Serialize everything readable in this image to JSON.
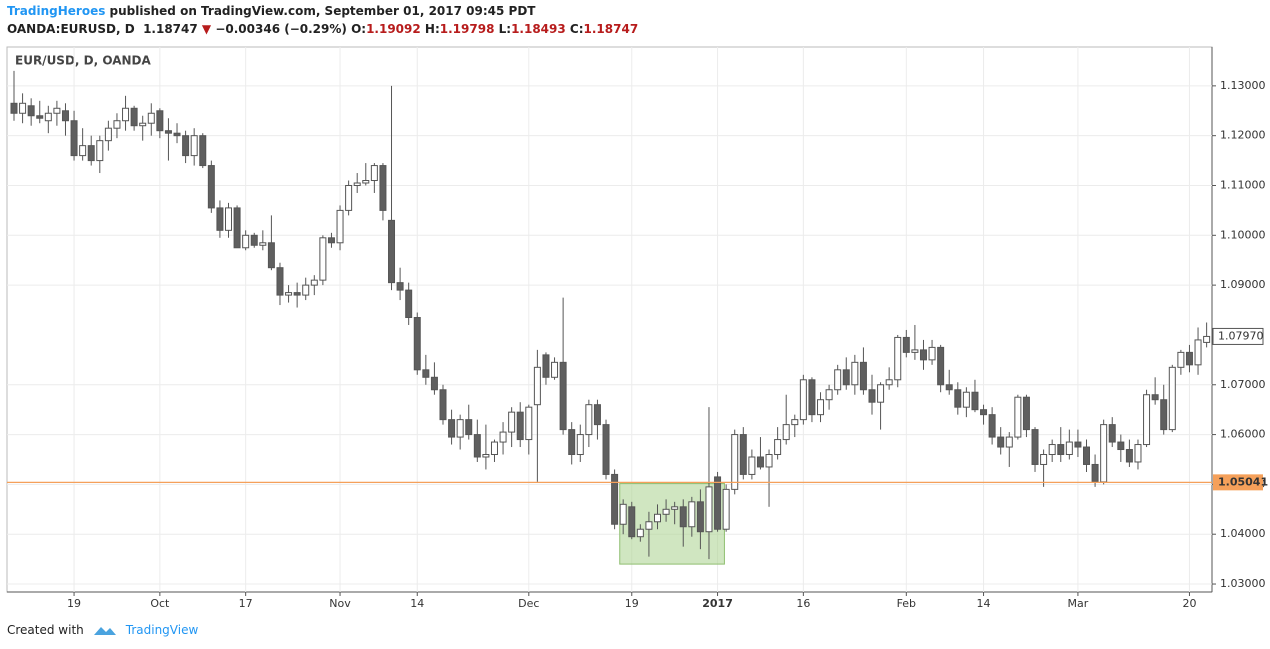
{
  "header": {
    "author": "TradingHeroes",
    "published": "published on TradingView.com, September 01, 2017 09:45 PDT",
    "symbol": "OANDA:EURUSD, D",
    "price": "1.18747",
    "change": "−0.00346 (−0.29%)",
    "o_label": "O:",
    "o_value": "1.19092",
    "h_label": "H:",
    "h_value": "1.19798",
    "l_label": "L:",
    "l_value": "1.18493",
    "c_label": "C:",
    "c_value": "1.18747"
  },
  "footer": {
    "created": "Created with",
    "brand": "TradingView"
  },
  "chart_data": {
    "type": "candlestick",
    "legend": "EUR/USD, D, OANDA",
    "categories": [
      null,
      null,
      null,
      null,
      null,
      null,
      null,
      "19",
      null,
      null,
      null,
      null,
      null,
      null,
      null,
      null,
      null,
      "Oct",
      null,
      null,
      null,
      null,
      null,
      null,
      null,
      null,
      null,
      "17",
      null,
      null,
      null,
      null,
      null,
      null,
      null,
      null,
      null,
      null,
      "Nov",
      null,
      null,
      null,
      null,
      null,
      null,
      null,
      null,
      "14",
      null,
      null,
      null,
      null,
      null,
      null,
      null,
      null,
      null,
      null,
      null,
      null,
      "Dec",
      null,
      null,
      null,
      null,
      null,
      null,
      null,
      null,
      null,
      null,
      null,
      "19",
      null,
      null,
      null,
      null,
      null,
      null,
      null,
      null,
      null,
      "2017",
      null,
      null,
      null,
      null,
      null,
      null,
      null,
      null,
      null,
      "16",
      null,
      null,
      null,
      null,
      null,
      null,
      null,
      null,
      null,
      null,
      null,
      "Feb",
      null,
      null,
      null,
      null,
      null,
      null,
      null,
      null,
      "14",
      null,
      null,
      null,
      null,
      null,
      null,
      null,
      null,
      null,
      null,
      "Mar",
      null,
      null,
      null,
      null,
      null,
      null,
      null,
      null,
      null,
      null,
      null,
      null,
      "20",
      null,
      null
    ],
    "open": [
      1.1265,
      1.1245,
      1.126,
      1.124,
      1.123,
      1.1245,
      1.125,
      1.123,
      1.116,
      1.118,
      1.115,
      1.119,
      1.1215,
      1.123,
      1.1255,
      1.122,
      1.1225,
      1.125,
      1.121,
      1.1205,
      1.12,
      1.116,
      1.12,
      1.114,
      1.1055,
      1.101,
      1.1055,
      1.0975,
      1.1,
      1.098,
      1.0985,
      1.0935,
      1.088,
      1.0885,
      1.088,
      1.09,
      1.091,
      1.0995,
      1.0985,
      1.105,
      1.11,
      1.1105,
      1.111,
      1.114,
      1.103,
      1.0905,
      1.089,
      1.0835,
      1.073,
      1.0715,
      1.069,
      1.063,
      1.0595,
      1.063,
      1.06,
      1.0555,
      1.056,
      1.0585,
      1.0605,
      1.0645,
      1.059,
      1.066,
      1.076,
      1.0715,
      1.0745,
      1.061,
      1.056,
      1.06,
      1.066,
      1.062,
      1.052,
      1.042,
      1.0455,
      1.0395,
      1.041,
      1.0425,
      1.044,
      1.045,
      1.0455,
      1.0415,
      1.0465,
      1.0405,
      1.0515,
      1.041,
      1.049,
      1.06,
      1.052,
      1.0555,
      1.0535,
      1.056,
      1.059,
      1.062,
      1.063,
      1.071,
      1.064,
      1.067,
      1.069,
      1.073,
      1.07,
      1.0745,
      1.069,
      1.0665,
      1.07,
      1.071,
      1.0795,
      1.0765,
      1.077,
      1.075,
      1.0775,
      1.07,
      1.069,
      1.0655,
      1.0685,
      1.065,
      1.064,
      1.0595,
      1.0575,
      1.0595,
      1.0675,
      1.061,
      1.054,
      1.056,
      1.058,
      1.056,
      1.0585,
      1.0575,
      1.054,
      1.0505,
      1.062,
      1.0585,
      1.057,
      1.0545,
      1.058,
      1.068,
      1.067,
      1.061,
      1.0735,
      1.0765,
      1.074,
      1.0785
    ],
    "high": [
      1.133,
      1.1285,
      1.1275,
      1.127,
      1.126,
      1.127,
      1.1265,
      1.125,
      1.1215,
      1.12,
      1.12,
      1.123,
      1.1245,
      1.128,
      1.126,
      1.124,
      1.1265,
      1.1255,
      1.1235,
      1.1225,
      1.121,
      1.1215,
      1.1205,
      1.115,
      1.107,
      1.1065,
      1.106,
      1.101,
      1.1005,
      1.101,
      1.104,
      1.0945,
      1.09,
      1.0905,
      1.0915,
      1.092,
      1.1,
      1.1005,
      1.106,
      1.111,
      1.1125,
      1.1145,
      1.1145,
      1.1145,
      1.13,
      1.0935,
      1.0905,
      1.0845,
      1.076,
      1.0745,
      1.07,
      1.065,
      1.064,
      1.066,
      1.063,
      1.062,
      1.059,
      1.0625,
      1.0655,
      1.0665,
      1.066,
      1.077,
      1.0765,
      1.0755,
      1.0875,
      1.0625,
      1.062,
      1.067,
      1.067,
      1.063,
      1.053,
      1.047,
      1.0465,
      1.042,
      1.0445,
      1.046,
      1.047,
      1.0465,
      1.047,
      1.0475,
      1.049,
      1.0655,
      1.0525,
      1.05,
      1.061,
      1.0615,
      1.057,
      1.0595,
      1.057,
      1.0615,
      1.068,
      1.064,
      1.072,
      1.0715,
      1.0685,
      1.07,
      1.074,
      1.0755,
      1.076,
      1.0775,
      1.072,
      1.0705,
      1.0735,
      1.08,
      1.081,
      1.082,
      1.079,
      1.079,
      1.078,
      1.073,
      1.0705,
      1.0695,
      1.071,
      1.066,
      1.0655,
      1.0615,
      1.0605,
      1.068,
      1.068,
      1.0615,
      1.057,
      1.059,
      1.0615,
      1.061,
      1.061,
      1.059,
      1.056,
      1.063,
      1.0635,
      1.06,
      1.059,
      1.059,
      1.069,
      1.0715,
      1.07,
      1.074,
      1.077,
      1.078,
      1.0815,
      1.0825
    ],
    "low": [
      1.123,
      1.1225,
      1.122,
      1.1225,
      1.1205,
      1.122,
      1.12,
      1.115,
      1.115,
      1.114,
      1.1125,
      1.117,
      1.1195,
      1.121,
      1.121,
      1.119,
      1.12,
      1.1195,
      1.115,
      1.1185,
      1.1145,
      1.114,
      1.1135,
      1.1045,
      1.0995,
      1.0995,
      1.0975,
      1.097,
      1.0975,
      1.097,
      1.093,
      1.086,
      1.0865,
      1.0855,
      1.087,
      1.088,
      1.09,
      1.0975,
      1.097,
      1.104,
      1.1085,
      1.11,
      1.1085,
      1.103,
      1.089,
      1.087,
      1.082,
      1.072,
      1.07,
      1.068,
      1.062,
      1.058,
      1.057,
      1.059,
      1.0545,
      1.053,
      1.0545,
      1.056,
      1.0575,
      1.0575,
      1.056,
      1.0505,
      1.07,
      1.071,
      1.06,
      1.054,
      1.0545,
      1.0575,
      1.059,
      1.051,
      1.041,
      1.04,
      1.039,
      1.0385,
      1.0355,
      1.041,
      1.0425,
      1.042,
      1.0375,
      1.0395,
      1.037,
      1.035,
      1.0405,
      1.0405,
      1.048,
      1.051,
      1.051,
      1.053,
      1.0455,
      1.055,
      1.058,
      1.0595,
      1.062,
      1.0625,
      1.0625,
      1.065,
      1.068,
      1.069,
      1.068,
      1.068,
      1.064,
      1.061,
      1.069,
      1.0695,
      1.0755,
      1.075,
      1.073,
      1.074,
      1.0685,
      1.068,
      1.064,
      1.0635,
      1.0645,
      1.062,
      1.058,
      1.056,
      1.0535,
      1.059,
      1.0595,
      1.0525,
      1.0495,
      1.0545,
      1.0545,
      1.055,
      1.0555,
      1.0525,
      1.0495,
      1.05,
      1.0575,
      1.0545,
      1.0535,
      1.053,
      1.0575,
      1.066,
      1.06,
      1.0605,
      1.072,
      1.0725,
      1.072,
      1.0775
    ],
    "close": [
      1.1245,
      1.1265,
      1.124,
      1.1235,
      1.1245,
      1.1255,
      1.123,
      1.116,
      1.118,
      1.115,
      1.119,
      1.1215,
      1.123,
      1.1255,
      1.122,
      1.1225,
      1.1245,
      1.121,
      1.1205,
      1.12,
      1.116,
      1.12,
      1.114,
      1.1055,
      1.101,
      1.1055,
      1.0975,
      1.1,
      1.098,
      1.0985,
      1.0935,
      1.088,
      1.0885,
      1.088,
      1.09,
      1.091,
      1.0995,
      1.0985,
      1.105,
      1.11,
      1.1105,
      1.111,
      1.114,
      1.105,
      1.0905,
      1.089,
      1.0835,
      1.073,
      1.0715,
      1.069,
      1.063,
      1.0595,
      1.063,
      1.06,
      1.0555,
      1.056,
      1.0585,
      1.0605,
      1.0645,
      1.059,
      1.0655,
      1.0735,
      1.0715,
      1.0745,
      1.061,
      1.056,
      1.06,
      1.066,
      1.062,
      1.052,
      1.042,
      1.046,
      1.0395,
      1.041,
      1.0425,
      1.044,
      1.045,
      1.0455,
      1.0415,
      1.0465,
      1.0405,
      1.0495,
      1.041,
      1.049,
      1.06,
      1.052,
      1.0555,
      1.0535,
      1.056,
      1.059,
      1.062,
      1.063,
      1.071,
      1.064,
      1.067,
      1.069,
      1.073,
      1.07,
      1.0745,
      1.069,
      1.0665,
      1.07,
      1.071,
      1.0795,
      1.0765,
      1.077,
      1.075,
      1.0775,
      1.07,
      1.069,
      1.0655,
      1.0685,
      1.065,
      1.064,
      1.0595,
      1.0575,
      1.0595,
      1.0675,
      1.061,
      1.054,
      1.056,
      1.058,
      1.056,
      1.0585,
      1.0575,
      1.054,
      1.0505,
      1.062,
      1.0585,
      1.057,
      1.0545,
      1.058,
      1.068,
      1.067,
      1.061,
      1.0735,
      1.0765,
      1.074,
      1.079,
      1.0797
    ],
    "last_value_label": "1.07970",
    "up_color": "#ffffff",
    "down_color": "#5f5f5f",
    "wick_color": "#555555",
    "ylim": [
      1.0284,
      1.1378
    ],
    "yticks": [
      {
        "value": 1.03,
        "label": "1.03000"
      },
      {
        "value": 1.04,
        "label": "1.04000"
      },
      {
        "value": 1.05,
        "label": "1.05000"
      },
      {
        "value": 1.06,
        "label": "1.06000"
      },
      {
        "value": 1.07,
        "label": "1.07000"
      },
      {
        "value": 1.09,
        "label": "1.09000"
      },
      {
        "value": 1.1,
        "label": "1.10000"
      },
      {
        "value": 1.11,
        "label": "1.11000"
      },
      {
        "value": 1.12,
        "label": "1.12000"
      },
      {
        "value": 1.13,
        "label": "1.13000"
      }
    ],
    "hline": {
      "value": 1.05041,
      "label": "1.05041",
      "color": "#f5a05a"
    },
    "zone": {
      "low": 1.034,
      "high": 1.0502,
      "color": "#a9d18e"
    },
    "grid": true
  }
}
